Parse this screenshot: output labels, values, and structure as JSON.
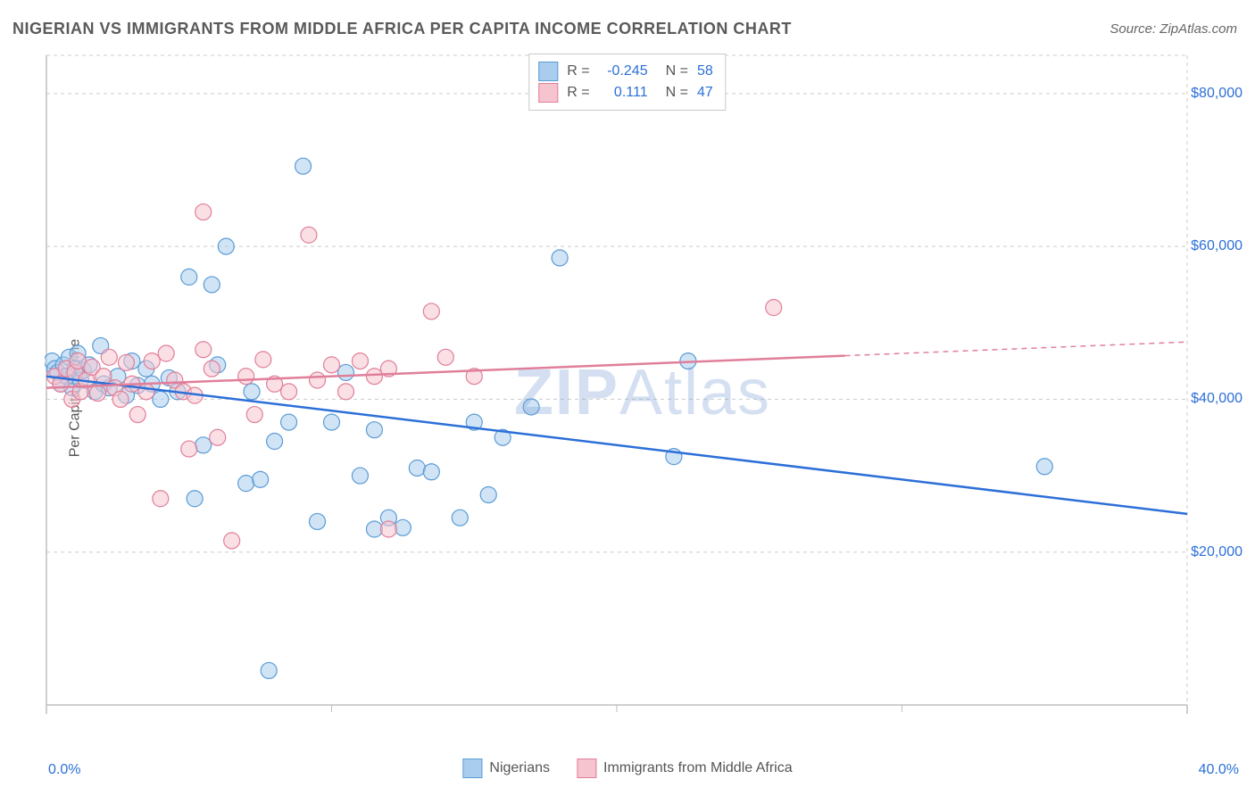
{
  "title": "NIGERIAN VS IMMIGRANTS FROM MIDDLE AFRICA PER CAPITA INCOME CORRELATION CHART",
  "source_prefix": "Source: ",
  "source_name": "ZipAtlas.com",
  "ylabel": "Per Capita Income",
  "watermark": {
    "bold": "ZIP",
    "rest": "Atlas"
  },
  "chart": {
    "type": "scatter",
    "background": "#ffffff",
    "grid_color": "#cccccc",
    "grid_dash": "4,4",
    "axis_color": "#bfbfbf",
    "xlim": [
      0,
      40
    ],
    "ylim": [
      0,
      85000
    ],
    "xticks": [
      0,
      40
    ],
    "xtick_labels": [
      "0.0%",
      "40.0%"
    ],
    "xtick_minor": [
      10,
      20,
      30
    ],
    "yticks": [
      20000,
      40000,
      60000,
      80000
    ],
    "ytick_labels": [
      "$20,000",
      "$40,000",
      "$60,000",
      "$80,000"
    ],
    "marker_radius": 9,
    "marker_opacity": 0.55,
    "line_width": 2.5,
    "series": [
      {
        "name": "Nigerians",
        "color_fill": "#a9cdef",
        "color_stroke": "#5b9bd5",
        "line_color": "#2c6fd8",
        "R": "-0.245",
        "N": "58",
        "trend": {
          "x1": 0,
          "y1": 43000,
          "x2": 40,
          "y2": 25000,
          "solid_until": 40
        },
        "points": [
          [
            0.2,
            45000
          ],
          [
            0.3,
            44000
          ],
          [
            0.4,
            43500
          ],
          [
            0.5,
            42000
          ],
          [
            0.6,
            44500
          ],
          [
            0.7,
            43000
          ],
          [
            0.8,
            45500
          ],
          [
            0.9,
            41500
          ],
          [
            1.0,
            44000
          ],
          [
            1.1,
            46000
          ],
          [
            1.2,
            42500
          ],
          [
            1.3,
            43800
          ],
          [
            1.5,
            44500
          ],
          [
            1.7,
            41000
          ],
          [
            1.9,
            47000
          ],
          [
            2.0,
            42000
          ],
          [
            2.2,
            41500
          ],
          [
            2.5,
            43000
          ],
          [
            2.8,
            40500
          ],
          [
            3.0,
            45000
          ],
          [
            3.2,
            41800
          ],
          [
            3.5,
            44000
          ],
          [
            3.7,
            42000
          ],
          [
            4.0,
            40000
          ],
          [
            4.3,
            42800
          ],
          [
            4.6,
            41000
          ],
          [
            5.0,
            56000
          ],
          [
            5.2,
            27000
          ],
          [
            5.5,
            34000
          ],
          [
            5.8,
            55000
          ],
          [
            6.0,
            44500
          ],
          [
            6.3,
            60000
          ],
          [
            7.0,
            29000
          ],
          [
            7.2,
            41000
          ],
          [
            7.5,
            29500
          ],
          [
            7.8,
            4500
          ],
          [
            8.0,
            34500
          ],
          [
            8.5,
            37000
          ],
          [
            9.0,
            70500
          ],
          [
            9.5,
            24000
          ],
          [
            10.0,
            37000
          ],
          [
            10.5,
            43500
          ],
          [
            11.0,
            30000
          ],
          [
            11.5,
            36000
          ],
          [
            12.0,
            24500
          ],
          [
            13.0,
            31000
          ],
          [
            13.5,
            30500
          ],
          [
            14.5,
            24500
          ],
          [
            15.0,
            37000
          ],
          [
            15.5,
            27500
          ],
          [
            16.0,
            35000
          ],
          [
            17.0,
            39000
          ],
          [
            18.0,
            58500
          ],
          [
            22.0,
            32500
          ],
          [
            22.5,
            45000
          ],
          [
            35.0,
            31200
          ],
          [
            11.5,
            23000
          ],
          [
            12.5,
            23200
          ]
        ]
      },
      {
        "name": "Immigrants from Middle Africa",
        "color_fill": "#f5c4cf",
        "color_stroke": "#e07f9a",
        "line_color": "#e07f9a",
        "R": "0.111",
        "N": "47",
        "trend": {
          "x1": 0,
          "y1": 41500,
          "x2": 40,
          "y2": 47500,
          "solid_until": 28
        },
        "points": [
          [
            0.3,
            43000
          ],
          [
            0.5,
            42000
          ],
          [
            0.7,
            44000
          ],
          [
            0.9,
            40000
          ],
          [
            1.0,
            43500
          ],
          [
            1.1,
            45000
          ],
          [
            1.2,
            41000
          ],
          [
            1.4,
            42500
          ],
          [
            1.6,
            44200
          ],
          [
            1.8,
            40800
          ],
          [
            2.0,
            43000
          ],
          [
            2.2,
            45500
          ],
          [
            2.4,
            41500
          ],
          [
            2.6,
            40000
          ],
          [
            2.8,
            44800
          ],
          [
            3.0,
            42000
          ],
          [
            3.2,
            38000
          ],
          [
            3.5,
            41000
          ],
          [
            3.7,
            45000
          ],
          [
            4.0,
            27000
          ],
          [
            4.2,
            46000
          ],
          [
            4.5,
            42500
          ],
          [
            4.8,
            41000
          ],
          [
            5.0,
            33500
          ],
          [
            5.2,
            40500
          ],
          [
            5.5,
            64500
          ],
          [
            5.8,
            44000
          ],
          [
            6.0,
            35000
          ],
          [
            6.5,
            21500
          ],
          [
            7.0,
            43000
          ],
          [
            7.3,
            38000
          ],
          [
            7.6,
            45200
          ],
          [
            8.0,
            42000
          ],
          [
            8.5,
            41000
          ],
          [
            9.2,
            61500
          ],
          [
            9.5,
            42500
          ],
          [
            10.0,
            44500
          ],
          [
            10.5,
            41000
          ],
          [
            11.0,
            45000
          ],
          [
            11.5,
            43000
          ],
          [
            12.0,
            44000
          ],
          [
            13.5,
            51500
          ],
          [
            14.0,
            45500
          ],
          [
            15.0,
            43000
          ],
          [
            25.5,
            52000
          ],
          [
            12.0,
            23000
          ],
          [
            5.5,
            46500
          ]
        ]
      }
    ]
  },
  "legend_bottom": {
    "items": [
      {
        "swatch_fill": "#a9cdef",
        "swatch_stroke": "#5b9bd5",
        "label": "Nigerians"
      },
      {
        "swatch_fill": "#f5c4cf",
        "swatch_stroke": "#e07f9a",
        "label": "Immigrants from Middle Africa"
      }
    ]
  },
  "legend_top_labels": {
    "R": "R =",
    "N": "N ="
  }
}
